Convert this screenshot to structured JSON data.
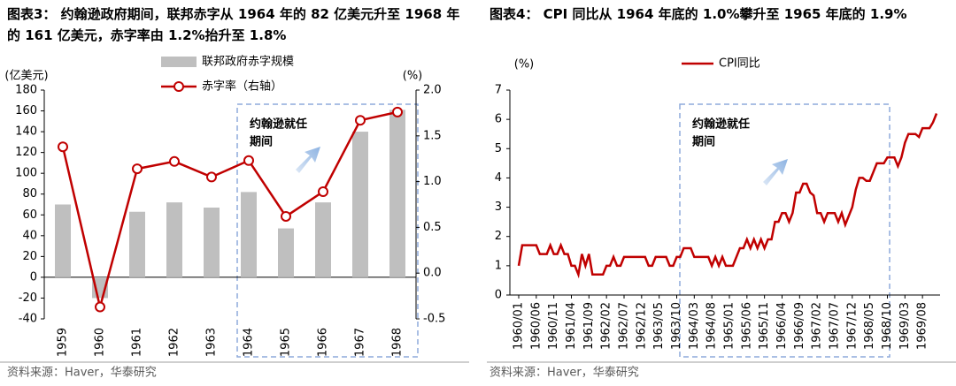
{
  "chart_data": [
    {
      "type": "bar",
      "title": "图表3： 约翰逊政府期间，联邦赤字从 1964 年的 82 亿美元升至 1968 年的 161 亿美元，赤字率由 1.2%抬升至 1.8%",
      "y_label": "(亿美元)",
      "y2_label": "(%)",
      "categories": [
        "1959",
        "1960",
        "1961",
        "1962",
        "1963",
        "1964",
        "1965",
        "1966",
        "1967",
        "1968"
      ],
      "series": [
        {
          "name": "联邦政府赤字规模",
          "type": "bar",
          "color": "#bfbfbf",
          "values": [
            70,
            -20,
            63,
            72,
            67,
            82,
            47,
            72,
            140,
            161
          ]
        },
        {
          "name": "赤字率（右轴）",
          "type": "line",
          "axis": "y2",
          "color": "#c00000",
          "values": [
            1.38,
            -0.37,
            1.14,
            1.22,
            1.05,
            1.23,
            0.62,
            0.89,
            1.67,
            1.76
          ]
        }
      ],
      "ylim": [
        -40,
        180
      ],
      "yticks": [
        -40,
        -20,
        0,
        20,
        40,
        60,
        80,
        100,
        120,
        140,
        160,
        180
      ],
      "y2lim": [
        -0.5,
        2.0
      ],
      "y2ticks": [
        -0.5,
        {
          "value": 0,
          "label": "0.0"
        },
        0.5,
        {
          "value": 1,
          "label": "1.0"
        },
        1.5,
        {
          "value": 2,
          "label": "2.0"
        }
      ],
      "annotation": [
        "约翰逊就任",
        "期间"
      ],
      "source": "资料来源：Haver，华泰研究"
    },
    {
      "type": "line",
      "title": "图表4： CPI 同比从 1964 年底的 1.0%攀升至 1965 年底的 1.9%",
      "y_label": "(%)",
      "categories": [
        "1960/01",
        null,
        null,
        null,
        null,
        "1960/06",
        null,
        null,
        null,
        null,
        "1960/11",
        null,
        null,
        null,
        null,
        "1961/04",
        null,
        null,
        null,
        null,
        "1961/09",
        null,
        null,
        null,
        null,
        "1962/02",
        null,
        null,
        null,
        null,
        "1962/07",
        null,
        null,
        null,
        null,
        "1962/12",
        null,
        null,
        null,
        null,
        "1963/05",
        null,
        null,
        null,
        null,
        "1963/10",
        null,
        null,
        null,
        null,
        "1964/03",
        null,
        null,
        null,
        null,
        "1964/08",
        null,
        null,
        null,
        null,
        "1965/01",
        null,
        null,
        null,
        null,
        "1965/06",
        null,
        null,
        null,
        null,
        "1965/11",
        null,
        null,
        null,
        null,
        "1966/04",
        null,
        null,
        null,
        null,
        "1966/09",
        null,
        null,
        null,
        null,
        "1967/02",
        null,
        null,
        null,
        null,
        "1967/07",
        null,
        null,
        null,
        null,
        "1967/12",
        null,
        null,
        null,
        null,
        "1968/05",
        null,
        null,
        null,
        null,
        "1968/10",
        null,
        null,
        null,
        null,
        "1969/03",
        null,
        null,
        null,
        null,
        "1969/08",
        null,
        null,
        null,
        null
      ],
      "series": [
        {
          "name": "CPI同比",
          "color": "#c00000",
          "values": [
            1.0,
            1.7,
            1.7,
            1.7,
            1.7,
            1.7,
            1.4,
            1.4,
            1.4,
            1.7,
            1.4,
            1.4,
            1.7,
            1.4,
            1.4,
            1.0,
            1.0,
            0.7,
            1.4,
            1.0,
            1.4,
            0.7,
            0.7,
            0.7,
            0.7,
            1.0,
            1.0,
            1.3,
            1.0,
            1.0,
            1.3,
            1.3,
            1.3,
            1.3,
            1.3,
            1.3,
            1.3,
            1.0,
            1.0,
            1.3,
            1.3,
            1.3,
            1.3,
            1.0,
            1.0,
            1.3,
            1.3,
            1.6,
            1.6,
            1.6,
            1.3,
            1.3,
            1.3,
            1.3,
            1.3,
            1.0,
            1.3,
            1.0,
            1.3,
            1.0,
            1.0,
            1.0,
            1.3,
            1.6,
            1.6,
            1.9,
            1.6,
            1.9,
            1.6,
            1.9,
            1.6,
            1.9,
            1.9,
            2.5,
            2.5,
            2.8,
            2.8,
            2.5,
            2.8,
            3.5,
            3.5,
            3.8,
            3.8,
            3.5,
            3.4,
            2.8,
            2.8,
            2.5,
            2.8,
            2.8,
            2.8,
            2.5,
            2.8,
            2.4,
            2.7,
            3.0,
            3.6,
            4.0,
            4.0,
            3.9,
            3.9,
            4.2,
            4.5,
            4.5,
            4.5,
            4.7,
            4.7,
            4.7,
            4.4,
            4.7,
            5.2,
            5.5,
            5.5,
            5.5,
            5.4,
            5.7,
            5.7,
            5.7,
            5.9,
            6.2
          ]
        }
      ],
      "ylim": [
        0,
        7
      ],
      "yticks": [
        0,
        1,
        2,
        3,
        4,
        5,
        6,
        7
      ],
      "annotation": [
        "约翰逊就任",
        "期间"
      ],
      "source": "资料来源：Haver，华泰研究"
    }
  ]
}
